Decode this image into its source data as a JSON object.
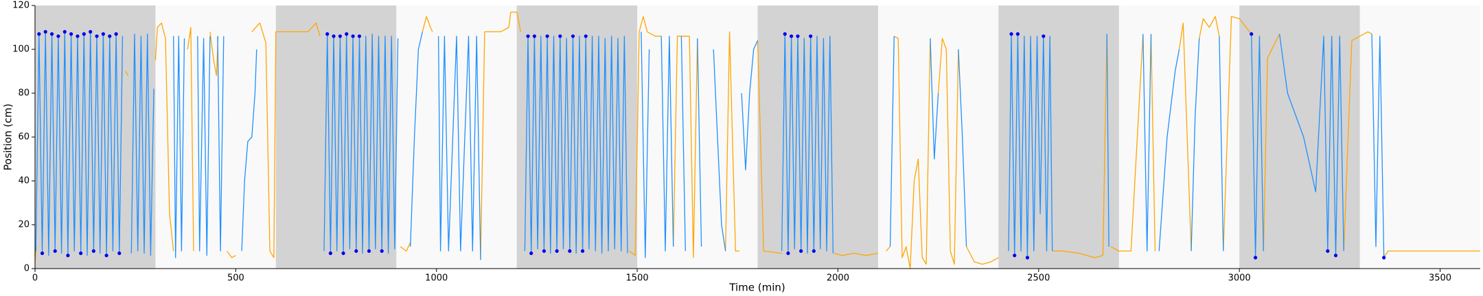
{
  "chart_data": {
    "type": "line",
    "x_label": "Time (min)",
    "y_label": "Position (cm)",
    "xlim": [
      0,
      3600
    ],
    "ylim": [
      0,
      120
    ],
    "xticks": [
      0,
      500,
      1000,
      1500,
      2000,
      2500,
      3000,
      3500
    ],
    "yticks": [
      0,
      20,
      40,
      60,
      80,
      100,
      120
    ],
    "background": "#f9f9f9",
    "shade_color": "#d3d3d3",
    "shaded_regions": [
      [
        0,
        300
      ],
      [
        600,
        900
      ],
      [
        1200,
        1500
      ],
      [
        1800,
        2100
      ],
      [
        2400,
        2700
      ],
      [
        3000,
        3300
      ]
    ],
    "series": [
      {
        "style": "line",
        "color": "#ffa500",
        "x": [
          0,
          3,
          null,
          225,
          232,
          null,
          300,
          305,
          315,
          325,
          335,
          345,
          null,
          380,
          388,
          395,
          null,
          436,
          445,
          452,
          456,
          null,
          478,
          490,
          500,
          null,
          540,
          560,
          575,
          585,
          595,
          600,
          640,
          680,
          700,
          710,
          null,
          910,
          925,
          935,
          null,
          965,
          975,
          985,
          990,
          null,
          1110,
          1120,
          1160,
          1180,
          1185,
          1200,
          1210,
          null,
          1480,
          1495,
          1505,
          1515,
          1525,
          1545,
          1560,
          null,
          1590,
          1600,
          1630,
          1640,
          1650,
          null,
          1720,
          1730,
          1745,
          1755,
          null,
          1800,
          1815,
          1860,
          null,
          1990,
          2010,
          2040,
          2070,
          2100,
          null,
          2120,
          2130,
          null,
          2140,
          2150,
          2160,
          2170,
          2180,
          2190,
          2200,
          2210,
          2220,
          2230,
          null,
          2250,
          2260,
          2270,
          2280,
          2290,
          2300,
          null,
          2320,
          2340,
          2360,
          2380,
          2400,
          null,
          2534,
          2560,
          2600,
          2640,
          2660,
          2670,
          null,
          2680,
          2700,
          2730,
          2760,
          null,
          2780,
          2790,
          null,
          2850,
          2860,
          2880,
          null,
          2900,
          2910,
          2925,
          2940,
          2950,
          null,
          2960,
          2980,
          3000,
          3030,
          null,
          3060,
          3070,
          3100,
          null,
          3260,
          3280,
          3300,
          3320,
          3330,
          null,
          3360,
          3370,
          3450,
          3600
        ],
        "values": [
          3,
          10,
          null,
          90,
          88,
          null,
          95,
          110,
          112,
          105,
          25,
          8,
          null,
          100,
          110,
          8,
          null,
          108,
          95,
          88,
          106,
          null,
          8,
          5,
          6,
          null,
          108,
          112,
          103,
          8,
          5,
          108,
          108,
          108,
          112,
          106,
          null,
          10,
          8,
          12,
          null,
          108,
          115,
          110,
          108,
          null,
          4,
          108,
          108,
          110,
          117,
          117,
          108,
          null,
          8,
          6,
          108,
          115,
          108,
          106,
          106,
          null,
          10,
          106,
          106,
          5,
          105,
          null,
          8,
          108,
          8,
          8,
          null,
          104,
          8,
          7,
          null,
          7,
          6,
          7,
          6,
          7,
          null,
          8,
          10,
          null,
          106,
          105,
          5,
          10,
          0,
          40,
          50,
          5,
          2,
          105,
          null,
          80,
          105,
          100,
          8,
          2,
          100,
          null,
          10,
          3,
          2,
          3,
          5,
          null,
          8,
          8,
          7,
          5,
          6,
          107,
          null,
          10,
          8,
          8,
          107,
          null,
          107,
          8,
          null,
          100,
          112,
          8,
          null,
          105,
          114,
          110,
          115,
          106,
          null,
          8,
          115,
          114,
          107,
          null,
          8,
          96,
          107,
          null,
          8,
          104,
          106,
          108,
          107,
          null,
          5,
          8,
          8,
          8
        ]
      },
      {
        "style": "line",
        "color": "#1e90ff",
        "x": [
          2,
          10,
          18,
          26,
          34,
          42,
          50,
          58,
          66,
          74,
          82,
          90,
          98,
          106,
          114,
          122,
          130,
          138,
          146,
          154,
          162,
          170,
          178,
          186,
          194,
          202,
          210,
          218,
          null,
          240,
          248,
          256,
          264,
          272,
          280,
          288,
          296,
          null,
          345,
          350,
          358,
          365,
          372,
          null,
          405,
          410,
          420,
          428,
          436,
          null,
          455,
          462,
          470,
          null,
          515,
          522,
          530,
          540,
          548,
          552,
          null,
          720,
          728,
          736,
          744,
          752,
          760,
          768,
          776,
          784,
          792,
          800,
          808,
          816,
          824,
          832,
          840,
          848,
          856,
          864,
          872,
          880,
          888,
          896,
          904,
          null,
          935,
          945,
          955,
          965,
          null,
          1005,
          1010,
          1020,
          1030,
          1050,
          1060,
          1080,
          1090,
          1100,
          1110,
          null,
          1220,
          1228,
          1236,
          1244,
          1252,
          1260,
          1268,
          1276,
          1284,
          1292,
          1300,
          1308,
          1316,
          1324,
          1332,
          1340,
          1348,
          1356,
          1364,
          1372,
          1380,
          1388,
          1396,
          1404,
          1412,
          1420,
          1428,
          1436,
          1444,
          1452,
          1460,
          1468,
          1476,
          null,
          1510,
          1520,
          1530,
          null,
          1560,
          1570,
          1580,
          1590,
          null,
          1610,
          1620,
          null,
          1650,
          1660,
          null,
          1690,
          1700,
          1710,
          1720,
          null,
          1760,
          1770,
          1780,
          1790,
          1800,
          null,
          1860,
          1868,
          1876,
          1884,
          1892,
          1900,
          1908,
          1916,
          1924,
          1932,
          1940,
          1948,
          1956,
          1964,
          1972,
          1980,
          1988,
          null,
          2130,
          2140,
          null,
          2230,
          2240,
          2250,
          null,
          2300,
          2310,
          2320,
          null,
          2425,
          2432,
          2440,
          2448,
          2456,
          2464,
          2472,
          2480,
          2488,
          2496,
          2504,
          2512,
          2520,
          2528,
          2534,
          null,
          2670,
          2675,
          null,
          2760,
          2770,
          2780,
          null,
          2800,
          2820,
          2840,
          2850,
          null,
          2880,
          2890,
          2900,
          null,
          2950,
          2960,
          null,
          3030,
          3040,
          3050,
          3060,
          null,
          3100,
          3120,
          3160,
          3190,
          3210,
          3220,
          3230,
          3240,
          3250,
          3260,
          null,
          3330,
          3340,
          3350,
          3360
        ],
        "values": [
          8,
          107,
          7,
          108,
          6,
          107,
          8,
          106,
          7,
          108,
          6,
          107,
          8,
          106,
          7,
          107,
          6,
          108,
          8,
          106,
          7,
          107,
          6,
          106,
          8,
          107,
          7,
          106,
          null,
          7,
          107,
          8,
          106,
          7,
          107,
          6,
          82,
          null,
          106,
          5,
          106,
          8,
          105,
          null,
          106,
          8,
          105,
          6,
          106,
          null,
          106,
          8,
          106,
          null,
          8,
          40,
          58,
          60,
          80,
          100,
          null,
          8,
          107,
          7,
          106,
          8,
          106,
          7,
          107,
          9,
          106,
          8,
          106,
          7,
          106,
          8,
          107,
          9,
          106,
          8,
          106,
          7,
          106,
          9,
          105,
          null,
          10,
          60,
          100,
          108,
          null,
          106,
          8,
          106,
          8,
          106,
          8,
          106,
          8,
          106,
          4,
          null,
          8,
          106,
          7,
          106,
          9,
          106,
          8,
          105,
          7,
          106,
          8,
          106,
          9,
          105,
          8,
          106,
          7,
          106,
          8,
          105,
          9,
          106,
          8,
          106,
          7,
          105,
          8,
          106,
          9,
          105,
          8,
          106,
          7,
          null,
          108,
          5,
          100,
          null,
          106,
          8,
          106,
          10,
          null,
          106,
          8,
          null,
          105,
          10,
          null,
          100,
          60,
          20,
          8,
          null,
          80,
          45,
          80,
          100,
          104,
          null,
          8,
          107,
          7,
          106,
          9,
          106,
          8,
          105,
          7,
          106,
          8,
          106,
          9,
          105,
          8,
          106,
          7,
          null,
          10,
          106,
          null,
          105,
          50,
          80,
          null,
          100,
          60,
          10,
          null,
          8,
          107,
          6,
          107,
          8,
          106,
          5,
          106,
          8,
          106,
          25,
          106,
          8,
          106,
          8,
          null,
          107,
          10,
          null,
          107,
          8,
          107,
          null,
          8,
          60,
          90,
          100,
          null,
          8,
          70,
          105,
          null,
          106,
          8,
          null,
          107,
          5,
          106,
          8,
          null,
          107,
          80,
          60,
          35,
          106,
          8,
          106,
          6,
          106,
          8,
          null,
          107,
          10,
          106,
          5
        ]
      },
      {
        "style": "markers",
        "color": "#0000ee",
        "x": [
          10,
          26,
          42,
          58,
          74,
          90,
          106,
          122,
          138,
          154,
          170,
          186,
          202,
          18,
          50,
          82,
          114,
          146,
          178,
          210,
          728,
          744,
          760,
          776,
          792,
          808,
          736,
          768,
          800,
          832,
          864,
          1228,
          1244,
          1276,
          1308,
          1340,
          1372,
          1236,
          1268,
          1300,
          1332,
          1364,
          1868,
          1884,
          1900,
          1932,
          1876,
          1908,
          1940,
          2432,
          2448,
          2512,
          2440,
          2472,
          3030,
          3040,
          3220,
          3240,
          3360
        ],
        "values": [
          107,
          108,
          107,
          106,
          108,
          107,
          106,
          107,
          108,
          106,
          107,
          106,
          107,
          7,
          8,
          6,
          7,
          8,
          6,
          7,
          107,
          106,
          106,
          107,
          106,
          106,
          7,
          7,
          8,
          8,
          8,
          106,
          106,
          106,
          106,
          106,
          106,
          7,
          8,
          8,
          8,
          8,
          107,
          106,
          106,
          106,
          7,
          8,
          8,
          107,
          107,
          106,
          6,
          5,
          107,
          5,
          8,
          6,
          5
        ]
      }
    ]
  }
}
